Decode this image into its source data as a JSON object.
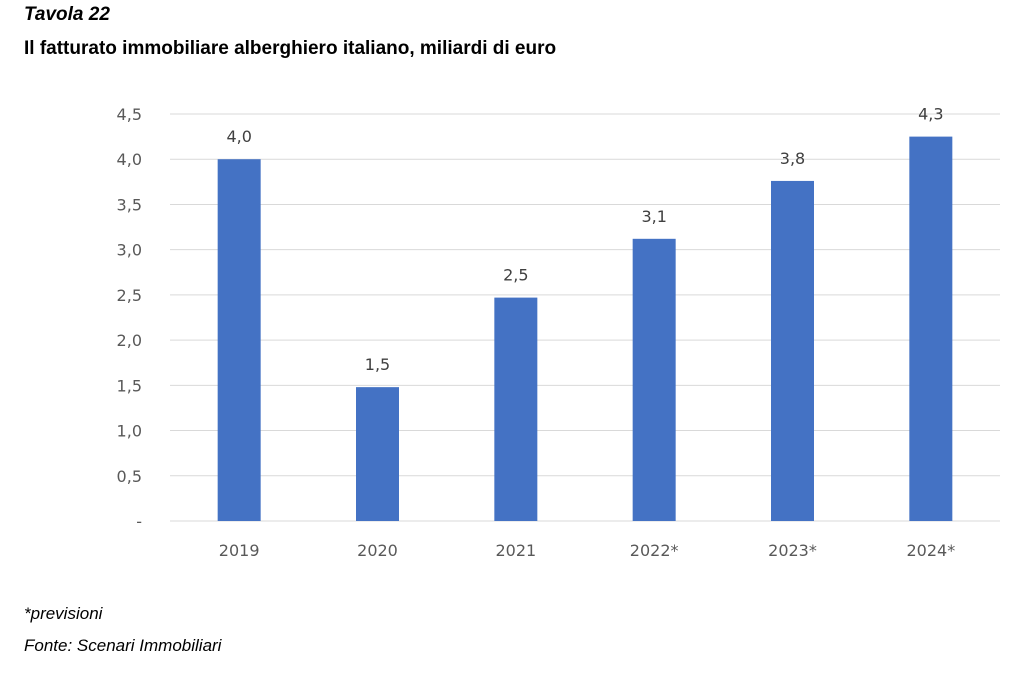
{
  "header": {
    "table_label": "Tavola 22",
    "title": "Il fatturato immobiliare alberghiero italiano, miliardi di euro"
  },
  "footer": {
    "note": "*previsioni",
    "source": "Fonte: Scenari Immobiliari"
  },
  "chart_data": {
    "type": "bar",
    "title": "",
    "xlabel": "",
    "ylabel": "",
    "categories": [
      "2019",
      "2020",
      "2021",
      "2022*",
      "2023*",
      "2024*"
    ],
    "values": [
      4.0,
      1.5,
      2.5,
      3.1,
      3.8,
      4.3
    ],
    "plotted_values": [
      4.0,
      1.48,
      2.47,
      3.12,
      3.76,
      4.25
    ],
    "data_labels": [
      "4,0",
      "1,5",
      "2,5",
      "3,1",
      "3,8",
      "4,3"
    ],
    "ylim": [
      0,
      4.5
    ],
    "yticks": [
      0,
      0.5,
      1.0,
      1.5,
      2.0,
      2.5,
      3.0,
      3.5,
      4.0,
      4.5
    ],
    "ytick_labels": [
      "-",
      "0,5",
      "1,0",
      "1,5",
      "2,0",
      "2,5",
      "3,0",
      "3,5",
      "4,0",
      "4,5"
    ],
    "grid": true,
    "legend": "none",
    "bar_color": "#4472C4",
    "grid_color": "#D9D9D9"
  }
}
